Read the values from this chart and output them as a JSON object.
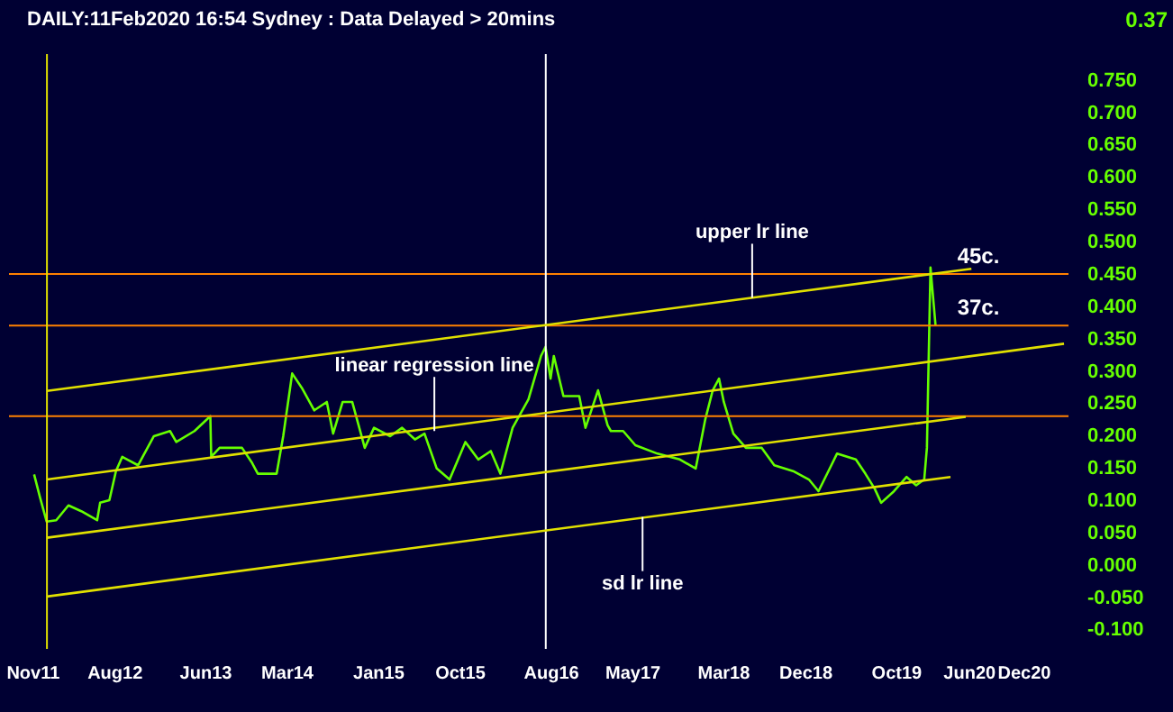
{
  "chart_data": {
    "type": "line",
    "title": "DAILY:11Feb2020 16:54 Sydney : Data Delayed > 20mins",
    "xlim": [
      "2011-08-15",
      "2021-05-01"
    ],
    "ylim": [
      -0.13,
      0.79
    ],
    "xticks": [
      {
        "value": "2011-11-01",
        "label": "Nov11"
      },
      {
        "value": "2012-08-01",
        "label": "Aug12"
      },
      {
        "value": "2013-06-01",
        "label": "Jun13"
      },
      {
        "value": "2014-03-01",
        "label": "Mar14"
      },
      {
        "value": "2015-01-01",
        "label": "Jan15"
      },
      {
        "value": "2015-10-01",
        "label": "Oct15"
      },
      {
        "value": "2016-08-01",
        "label": "Aug16"
      },
      {
        "value": "2017-05-01",
        "label": "May17"
      },
      {
        "value": "2018-03-01",
        "label": "Mar18"
      },
      {
        "value": "2018-12-01",
        "label": "Dec18"
      },
      {
        "value": "2019-10-01",
        "label": "Oct19"
      },
      {
        "value": "2020-06-01",
        "label": "Jun20"
      },
      {
        "value": "2020-12-01",
        "label": "Dec20"
      }
    ],
    "yticks": [
      {
        "value": -0.1,
        "label": "-0.100"
      },
      {
        "value": -0.05,
        "label": "-0.050"
      },
      {
        "value": 0,
        "label": "0.000"
      },
      {
        "value": 0.05,
        "label": "0.050"
      },
      {
        "value": 0.1,
        "label": "0.100"
      },
      {
        "value": 0.15,
        "label": "0.150"
      },
      {
        "value": 0.2,
        "label": "0.200"
      },
      {
        "value": 0.25,
        "label": "0.250"
      },
      {
        "value": 0.3,
        "label": "0.300"
      },
      {
        "value": 0.35,
        "label": "0.350"
      },
      {
        "value": 0.4,
        "label": "0.400"
      },
      {
        "value": 0.45,
        "label": "0.450"
      },
      {
        "value": 0.5,
        "label": "0.500"
      },
      {
        "value": 0.55,
        "label": "0.550"
      },
      {
        "value": 0.6,
        "label": "0.600"
      },
      {
        "value": 0.65,
        "label": "0.650"
      },
      {
        "value": 0.7,
        "label": "0.700"
      },
      {
        "value": 0.75,
        "label": "0.750"
      }
    ],
    "series": [
      {
        "color": "#66ff00",
        "x": [
          "2011-11-07",
          "2011-11-27",
          "2011-12-19",
          "2012-01-20",
          "2012-03-01",
          "2012-04-13",
          "2012-06-05",
          "2012-06-15",
          "2012-07-16",
          "2012-08-07",
          "2012-08-28",
          "2012-10-20",
          "2012-12-12",
          "2013-02-04",
          "2013-02-25",
          "2013-04-27",
          "2013-06-19",
          "2013-06-22",
          "2013-07-20",
          "2013-10-03",
          "2013-11-04",
          "2013-11-25",
          "2014-01-27",
          "2014-02-18",
          "2014-03-20",
          "2014-04-21",
          "2014-06-02",
          "2014-07-14",
          "2014-08-04",
          "2014-09-05",
          "2014-10-07",
          "2014-11-18",
          "2014-12-19",
          "2015-02-11",
          "2015-03-23",
          "2015-05-05",
          "2015-06-06",
          "2015-07-17",
          "2015-08-29",
          "2015-10-21",
          "2015-12-03",
          "2016-01-14",
          "2016-02-15",
          "2016-03-27",
          "2016-05-19",
          "2016-06-30",
          "2016-07-15",
          "2016-08-01",
          "2016-08-12",
          "2016-09-13",
          "2016-11-05",
          "2016-11-26",
          "2017-01-07",
          "2017-02-08",
          "2017-02-19",
          "2017-04-01",
          "2017-05-12",
          "2017-07-25",
          "2017-10-08",
          "2017-11-30",
          "2018-01-01",
          "2018-01-26",
          "2018-02-16",
          "2018-03-04",
          "2018-04-05",
          "2018-05-17",
          "2018-07-09",
          "2018-08-20",
          "2018-10-22",
          "2018-12-14",
          "2019-01-15",
          "2019-02-27",
          "2019-03-18",
          "2019-05-20",
          "2019-06-21",
          "2019-07-22",
          "2019-08-13",
          "2019-09-25",
          "2019-11-06",
          "2019-12-08",
          "2020-01-04",
          "2020-01-13",
          "2020-01-25",
          "2020-02-11"
        ],
        "values": [
          0.14,
          0.104,
          0.067,
          0.069,
          0.092,
          0.083,
          0.069,
          0.096,
          0.1,
          0.145,
          0.167,
          0.154,
          0.199,
          0.207,
          0.19,
          0.207,
          0.23,
          0.167,
          0.181,
          0.181,
          0.159,
          0.141,
          0.141,
          0.199,
          0.296,
          0.274,
          0.239,
          0.252,
          0.203,
          0.252,
          0.252,
          0.181,
          0.212,
          0.199,
          0.212,
          0.194,
          0.203,
          0.149,
          0.132,
          0.19,
          0.163,
          0.176,
          0.141,
          0.212,
          0.256,
          0.323,
          0.337,
          0.288,
          0.323,
          0.261,
          0.261,
          0.212,
          0.27,
          0.216,
          0.207,
          0.207,
          0.185,
          0.172,
          0.163,
          0.149,
          0.225,
          0.27,
          0.288,
          0.252,
          0.203,
          0.181,
          0.181,
          0.154,
          0.145,
          0.132,
          0.114,
          0.154,
          0.172,
          0.163,
          0.141,
          0.118,
          0.096,
          0.114,
          0.136,
          0.123,
          0.132,
          0.181,
          0.46,
          0.37
        ]
      },
      {
        "type": "line",
        "color": "#e0e000",
        "x": [
          "2011-12-20",
          "2020-06-10"
        ],
        "values": [
          0.269,
          0.458
        ]
      },
      {
        "type": "line",
        "color": "#e0e000",
        "x": [
          "2011-12-20",
          "2021-04-16"
        ],
        "values": [
          0.132,
          0.342
        ]
      },
      {
        "type": "line",
        "color": "#e0e000",
        "x": [
          "2011-12-20",
          "2020-05-22"
        ],
        "values": [
          0.042,
          0.229
        ]
      },
      {
        "type": "line",
        "color": "#e0e000",
        "x": [
          "2011-12-20",
          "2020-04-01"
        ],
        "values": [
          -0.049,
          0.136
        ]
      }
    ],
    "ref_lines": [
      {
        "axis": "x",
        "value": "2011-12-20",
        "color": "#e0e000"
      },
      {
        "axis": "x",
        "value": "2016-07-16",
        "color": "#ffffff"
      },
      {
        "axis": "y",
        "value": 0.45,
        "label": "45c.",
        "color": "#ff8000"
      },
      {
        "axis": "y",
        "value": 0.37,
        "label": "37c.",
        "color": "#ff8000"
      },
      {
        "axis": "y",
        "value": 0.23,
        "color": "#ff8000"
      }
    ],
    "annotations": [
      {
        "text": "linear regression line",
        "x": "2015-07-09",
        "y": 0.207
      },
      {
        "text": "upper lr line",
        "x": "2018-06-07",
        "y": 0.413
      },
      {
        "text": "sd lr line",
        "x": "2017-06-05",
        "y": 0.074
      },
      "0.37"
    ]
  }
}
